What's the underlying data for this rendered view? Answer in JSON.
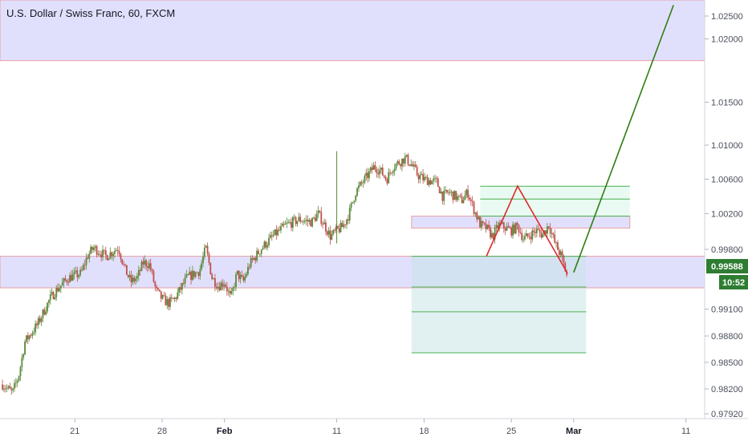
{
  "header": {
    "title": "U.S. Dollar / Swiss Franc, 60, FXCM"
  },
  "colors": {
    "zone_fill": "#dcdafb",
    "zone_border": "#e8a0a6",
    "up_candle": "#5a8a3a",
    "down_candle": "#c0504d",
    "projection_up": "#2e7d12",
    "projection_down": "#e0282a",
    "price_badge": "#2e7d32",
    "target_fill": "#d5f5e6",
    "stop_fill": "#c9e4e6",
    "target_line": "#4caf50"
  },
  "price_badges": {
    "last_price": "0.99588",
    "countdown": "10:52"
  },
  "chart_data": {
    "type": "candlestick",
    "title": "U.S. Dollar / Swiss Franc, 60, FXCM",
    "x_axis": {
      "ticks": [
        {
          "label": "21",
          "day": 0
        },
        {
          "label": "28",
          "day": 7
        },
        {
          "label": "Feb",
          "day": 12,
          "bold": true
        },
        {
          "label": "11",
          "day": 21
        },
        {
          "label": "18",
          "day": 28
        },
        {
          "label": "25",
          "day": 35
        },
        {
          "label": "Mar",
          "day": 40,
          "bold": true
        },
        {
          "label": "11",
          "day": 49
        }
      ],
      "range_days": [
        -6,
        50.5
      ]
    },
    "y_axis": {
      "ticks": [
        "1.02500",
        "1.02000",
        "1.01500",
        "1.01000",
        "1.00600",
        "1.00200",
        "0.99800",
        "0.99100",
        "0.98800",
        "0.98500",
        "0.98200",
        "0.97920"
      ],
      "ylim": [
        0.9785,
        1.0275
      ],
      "scale": "linear"
    },
    "price_path": {
      "description_points_day_price": [
        [
          -5.8,
          0.9825
        ],
        [
          -5.0,
          0.9815
        ],
        [
          -4.5,
          0.9835
        ],
        [
          -4.0,
          0.9875
        ],
        [
          -3.0,
          0.9895
        ],
        [
          -2.0,
          0.9925
        ],
        [
          -1.5,
          0.9935
        ],
        [
          -0.5,
          0.995
        ],
        [
          0.5,
          0.9955
        ],
        [
          1.0,
          0.9975
        ],
        [
          1.5,
          0.9985
        ],
        [
          2.5,
          0.9975
        ],
        [
          3.5,
          0.9985
        ],
        [
          4.0,
          0.996
        ],
        [
          4.5,
          0.9945
        ],
        [
          5.0,
          0.995
        ],
        [
          5.5,
          0.9968
        ],
        [
          6.0,
          0.9965
        ],
        [
          6.5,
          0.9935
        ],
        [
          7.0,
          0.9925
        ],
        [
          7.5,
          0.992
        ],
        [
          8.0,
          0.9925
        ],
        [
          9.0,
          0.995
        ],
        [
          10.0,
          0.9958
        ],
        [
          10.5,
          0.9985
        ],
        [
          11.0,
          0.995
        ],
        [
          11.5,
          0.994
        ],
        [
          12.0,
          0.9945
        ],
        [
          12.5,
          0.9925
        ],
        [
          13.0,
          0.9955
        ],
        [
          13.5,
          0.9945
        ],
        [
          14.0,
          0.9965
        ],
        [
          15.0,
          0.9985
        ],
        [
          16.0,
          1.0
        ],
        [
          17.0,
          1.0012
        ],
        [
          18.0,
          1.0018
        ],
        [
          19.0,
          1.0015
        ],
        [
          19.5,
          1.0025
        ],
        [
          20.0,
          1.0012
        ],
        [
          20.5,
          0.9998
        ],
        [
          21.0,
          1.0005
        ],
        [
          21.5,
          1.001
        ],
        [
          22.0,
          1.0025
        ],
        [
          22.5,
          1.005
        ],
        [
          23.0,
          1.006
        ],
        [
          24.0,
          1.008
        ],
        [
          24.5,
          1.0075
        ],
        [
          25.0,
          1.0065
        ],
        [
          25.5,
          1.008
        ],
        [
          26.5,
          1.009
        ],
        [
          27.0,
          1.0082
        ],
        [
          27.5,
          1.007
        ],
        [
          28.0,
          1.0065
        ],
        [
          29.0,
          1.0062
        ],
        [
          29.5,
          1.0045
        ],
        [
          30.0,
          1.005
        ],
        [
          31.0,
          1.004
        ],
        [
          31.5,
          1.005
        ],
        [
          32.0,
          1.003
        ],
        [
          32.5,
          1.0012
        ],
        [
          33.0,
          1.0008
        ],
        [
          33.5,
          0.9998
        ],
        [
          34.0,
          1.0012
        ],
        [
          35.0,
          1.0005
        ],
        [
          35.5,
          1.001
        ],
        [
          36.0,
          0.9995
        ],
        [
          36.5,
          1.0
        ],
        [
          37.0,
          1.0005
        ],
        [
          37.5,
          1.0
        ],
        [
          38.0,
          1.0012
        ],
        [
          38.5,
          0.999
        ],
        [
          39.0,
          0.9975
        ],
        [
          39.5,
          0.995
        ]
      ],
      "spike": {
        "day": 21.0,
        "high": 1.0098,
        "low": 0.999
      }
    },
    "zones": [
      {
        "name": "resistance-zone-top",
        "y_from": 1.0204,
        "y_to": 1.0275,
        "x_from": -6,
        "x_to": 50.5
      },
      {
        "name": "support-zone-main",
        "y_from": 0.9938,
        "y_to": 0.9975,
        "x_from": -6,
        "x_to": 50.5
      },
      {
        "name": "mid-zone",
        "y_from": 1.0008,
        "y_to": 1.0022,
        "x_from": 27.0,
        "x_to": 44.5
      }
    ],
    "position_boxes": [
      {
        "name": "upper-target-box",
        "y_from": 1.0022,
        "y_to": 1.0057,
        "x_from": 32.5,
        "x_to": 44.5,
        "inner_lines": [
          1.0042
        ]
      },
      {
        "name": "lower-stop-box",
        "y_from": 0.9862,
        "y_to": 0.9975,
        "x_from": 27.0,
        "x_to": 41.0,
        "inner_lines": [
          0.9939,
          0.991
        ]
      }
    ],
    "projection_down": [
      [
        33.0,
        0.9975
      ],
      [
        35.5,
        1.0057
      ],
      [
        39.5,
        0.9955
      ]
    ],
    "projection_up": [
      [
        40.0,
        0.9956
      ],
      [
        48.0,
        1.0269
      ]
    ],
    "last_price": 0.99588
  }
}
